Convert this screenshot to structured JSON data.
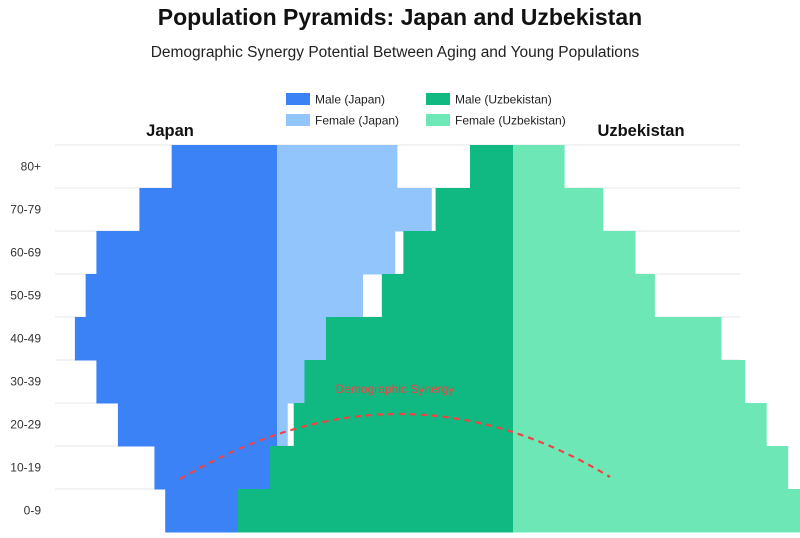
{
  "chart_data": {
    "type": "bar",
    "title": "Population Pyramids: Japan and Uzbekistan",
    "subtitle": "Demographic Synergy Potential Between Aging and Young Populations",
    "categories": [
      "0-9",
      "10-19",
      "20-29",
      "30-39",
      "40-49",
      "50-59",
      "60-69",
      "70-79",
      "80+"
    ],
    "x_unit_note": "bar lengths in relative units measured from each country's centre axis (axis unlabeled)",
    "panels": [
      {
        "name": "Japan",
        "series": [
          {
            "name": "Male (Japan)",
            "values": [
              5.2,
              5.7,
              7.4,
              8.4,
              9.4,
              8.9,
              8.4,
              6.4,
              4.9
            ]
          },
          {
            "name": "Female (Japan)",
            "values": [
              0,
              0,
              0.5,
              1.5,
              2.5,
              4.0,
              5.5,
              7.2,
              5.6
            ]
          }
        ]
      },
      {
        "name": "Uzbekistan",
        "series": [
          {
            "name": "Male (Uzbekistan)",
            "values": [
              12.8,
              11.3,
              10.2,
              9.7,
              8.7,
              6.1,
              5.1,
              3.6,
              2.0
            ]
          },
          {
            "name": "Female (Uzbekistan)",
            "values": [
              13.9,
              12.8,
              11.8,
              10.8,
              9.7,
              6.6,
              5.7,
              4.2,
              2.4
            ]
          }
        ]
      }
    ],
    "colors": {
      "Male (Japan)": "#3b82f6",
      "Female (Japan)": "#93c5fd",
      "Male (Uzbekistan)": "#10b981",
      "Female (Uzbekistan)": "#6ee7b7",
      "synergy": "#ef4444"
    },
    "legend": {
      "placement": "top-center",
      "items": [
        "Male (Japan)",
        "Female (Japan)",
        "Male (Uzbekistan)",
        "Female (Uzbekistan)"
      ]
    },
    "annotation": {
      "text": "Demographic Synergy",
      "style": "dashed-arc"
    },
    "grid": true
  }
}
